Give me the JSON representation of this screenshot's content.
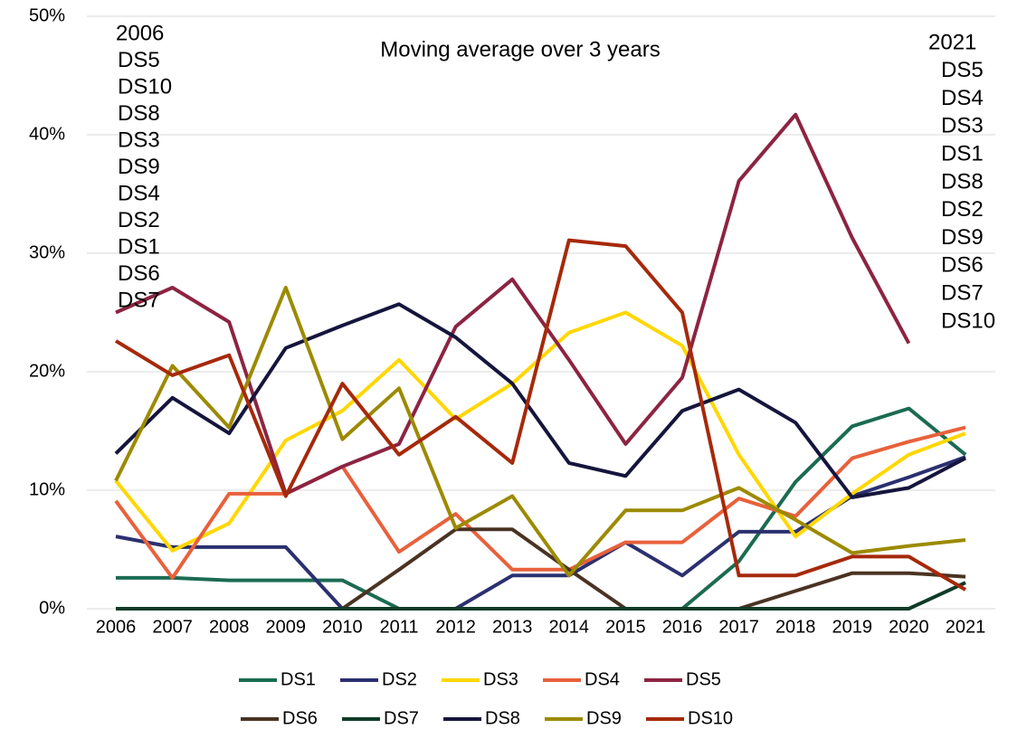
{
  "chart_data": {
    "type": "line",
    "title": "Moving average over 3 years",
    "annotations_left": [
      "2006",
      "DS5",
      "DS10",
      "DS8",
      "DS3",
      "DS9",
      "DS4",
      "DS2",
      "DS1",
      "DS6",
      "DS7"
    ],
    "annotations_right": [
      "2021",
      "DS5",
      "DS4",
      "DS3",
      "DS1",
      "DS8",
      "DS2",
      "DS9",
      "DS6",
      "DS7",
      "DS10"
    ],
    "categories": [
      "2006",
      "2007",
      "2008",
      "2009",
      "2010",
      "2011",
      "2012",
      "2013",
      "2014",
      "2015",
      "2016",
      "2017",
      "2018",
      "2019",
      "2020",
      "2021"
    ],
    "ylim": [
      0,
      50
    ],
    "yticks": [
      {
        "value": 0,
        "label": "0%"
      },
      {
        "value": 10,
        "label": "10%"
      },
      {
        "value": 20,
        "label": "20%"
      },
      {
        "value": 30,
        "label": "30%"
      },
      {
        "value": 40,
        "label": "40%"
      },
      {
        "value": 50,
        "label": "50%"
      }
    ],
    "grid": true,
    "legend": "bottom",
    "series": [
      {
        "name": "DS1",
        "color": "#1b6b52",
        "values": [
          2.6,
          2.6,
          2.4,
          2.4,
          2.4,
          0,
          0,
          0,
          0,
          0,
          0,
          4,
          10.7,
          15.4,
          16.9,
          13
        ]
      },
      {
        "name": "DS2",
        "color": "#2b3070",
        "values": [
          6.1,
          5.2,
          5.2,
          5.2,
          0,
          0,
          0,
          2.8,
          2.8,
          5.6,
          2.8,
          6.5,
          6.5,
          9.5,
          11.1,
          12.8
        ]
      },
      {
        "name": "DS3",
        "color": "#ffd700",
        "values": [
          10.8,
          4.9,
          7.2,
          14.2,
          16.7,
          21,
          16,
          19,
          23.3,
          25,
          22.2,
          13,
          6.1,
          9.7,
          13,
          14.8
        ]
      },
      {
        "name": "DS4",
        "color": "#e8613c",
        "values": [
          9.1,
          2.6,
          9.7,
          9.7,
          12,
          4.8,
          8,
          3.3,
          3.3,
          5.6,
          5.6,
          9.3,
          7.8,
          12.7,
          14.1,
          15.3
        ]
      },
      {
        "name": "DS5",
        "color": "#8c2442",
        "values": [
          25,
          27.1,
          24.2,
          9.7,
          12,
          13.9,
          23.8,
          27.8,
          21,
          13.9,
          19.5,
          36.1,
          41.7,
          31.3,
          22.4,
          null
        ]
      },
      {
        "name": "DS6",
        "color": "#4a3323",
        "values": [
          0,
          0,
          0,
          0,
          0,
          3.3,
          6.7,
          6.7,
          3.3,
          0,
          0,
          0,
          1.5,
          3,
          3,
          2.7
        ]
      },
      {
        "name": "DS7",
        "color": "#0e3b27",
        "values": [
          0,
          0,
          0,
          0,
          0,
          0,
          0,
          0,
          0,
          0,
          0,
          0,
          0,
          0,
          0,
          2.2
        ]
      },
      {
        "name": "DS8",
        "color": "#15153d",
        "values": [
          13.1,
          17.8,
          14.8,
          22,
          23.9,
          25.7,
          22.9,
          19,
          12.3,
          11.2,
          16.7,
          18.5,
          15.7,
          9.4,
          10.2,
          12.7
        ]
      },
      {
        "name": "DS9",
        "color": "#9c8a00",
        "values": [
          10.8,
          20.5,
          15.3,
          27.1,
          14.3,
          18.6,
          6.8,
          9.5,
          2.8,
          8.3,
          8.3,
          10.2,
          7.5,
          4.7,
          5.3,
          5.8
        ]
      },
      {
        "name": "DS10",
        "color": "#a6290a",
        "values": [
          22.6,
          19.7,
          21.4,
          9.5,
          19,
          13,
          16.2,
          12.3,
          31.1,
          30.6,
          25,
          2.8,
          2.8,
          4.4,
          4.4,
          1.6
        ]
      }
    ]
  }
}
